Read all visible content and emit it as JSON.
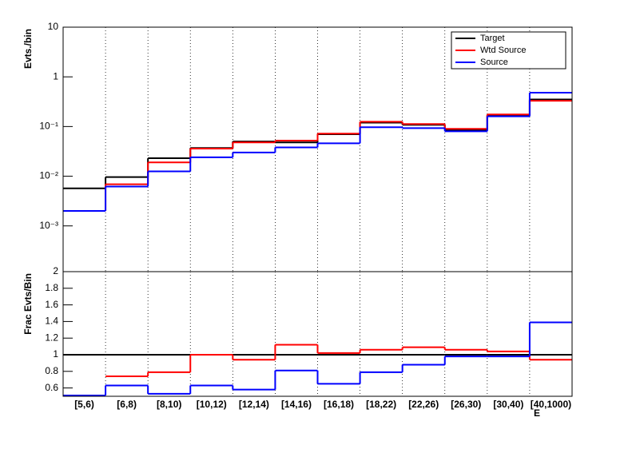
{
  "chart_data": [
    {
      "type": "step",
      "y_label": "Evts./bin",
      "log_y": true,
      "grid": "x",
      "legend": "upper right",
      "categories": [
        "[5,6)",
        "[6,8)",
        "[8,10)",
        "[10,12)",
        "[12,14)",
        "[14,16)",
        "[16,18)",
        "[18,22)",
        "[22,26)",
        "[26,30)",
        "[30,40)",
        "[40,1000)"
      ],
      "ylim": [
        0.00012,
        10
      ],
      "yticks": [
        {
          "value": 0.001,
          "label": "10⁻³"
        },
        {
          "value": 0.01,
          "label": "10⁻²"
        },
        {
          "value": 0.1,
          "label": "10⁻¹"
        },
        1,
        10
      ],
      "series": [
        {
          "name": "Target",
          "color": "#000000",
          "values": [
            0.0057,
            0.0096,
            0.023,
            0.037,
            0.05,
            0.048,
            0.07,
            0.12,
            0.108,
            0.086,
            0.168,
            0.35
          ]
        },
        {
          "name": "Wtd Source",
          "color": "#ff0000",
          "values": [
            0.002,
            0.0069,
            0.019,
            0.036,
            0.048,
            0.052,
            0.072,
            0.125,
            0.112,
            0.09,
            0.175,
            0.33
          ]
        },
        {
          "name": "Source",
          "color": "#0000ff",
          "values": [
            0.002,
            0.0062,
            0.0125,
            0.024,
            0.03,
            0.038,
            0.046,
            0.097,
            0.093,
            0.08,
            0.16,
            0.48
          ]
        }
      ]
    },
    {
      "type": "step",
      "y_label": "Frac Evts/Bin",
      "x_label": "E",
      "grid": "x",
      "categories": [
        "[5,6)",
        "[6,8)",
        "[8,10)",
        "[10,12)",
        "[12,14)",
        "[14,16)",
        "[16,18)",
        "[18,22)",
        "[22,26)",
        "[26,30)",
        "[30,40)",
        "[40,1000)"
      ],
      "ylim": [
        0.5,
        2
      ],
      "yticks": [
        0.6,
        0.8,
        1,
        1.2,
        1.4,
        1.6,
        1.8,
        2
      ],
      "series": [
        {
          "name": "Target",
          "color": "#000000",
          "values": [
            1,
            1,
            1,
            1,
            1,
            1,
            1,
            1,
            1,
            1,
            1,
            1
          ]
        },
        {
          "name": "Wtd Source",
          "color": "#ff0000",
          "values": [
            null,
            0.74,
            0.79,
            1.0,
            0.94,
            1.12,
            1.02,
            1.06,
            1.09,
            1.06,
            1.04,
            0.94
          ]
        },
        {
          "name": "Source",
          "color": "#0000ff",
          "values": [
            0.51,
            0.63,
            0.53,
            0.63,
            0.58,
            0.81,
            0.65,
            0.79,
            0.88,
            0.98,
            0.98,
            1.39
          ]
        }
      ]
    }
  ]
}
